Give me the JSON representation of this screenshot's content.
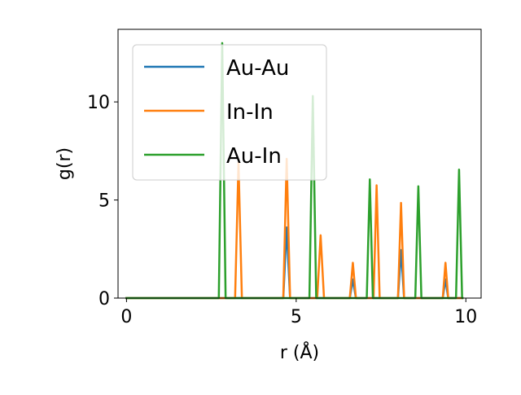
{
  "chart_data": {
    "type": "line",
    "title": "",
    "xlabel": "r (Å)",
    "ylabel": "g(r)",
    "xlim": [
      -0.25,
      10.45
    ],
    "ylim": [
      0,
      13.7
    ],
    "xticks": [
      0,
      5,
      10
    ],
    "yticks": [
      0,
      5,
      10
    ],
    "xtick_labels": [
      "0",
      "5",
      "10"
    ],
    "ytick_labels": [
      "0",
      "5",
      "10"
    ],
    "grid": false,
    "legend_position": "top-left",
    "series": [
      {
        "name": "Au-Au",
        "color": "#1f77b4",
        "x": [
          0,
          4.62,
          4.72,
          4.82,
          6.58,
          6.67,
          6.76,
          8.0,
          8.09,
          8.18,
          9.32,
          9.4,
          9.48,
          9.9
        ],
        "y": [
          0,
          0,
          3.6,
          0,
          0,
          0.95,
          0,
          0,
          2.45,
          0,
          0,
          0.95,
          0,
          0
        ]
      },
      {
        "name": "In-In",
        "color": "#ff7f0e",
        "x": [
          0,
          3.2,
          3.3,
          3.4,
          4.62,
          4.72,
          4.82,
          5.62,
          5.72,
          5.82,
          6.58,
          6.67,
          6.76,
          7.28,
          7.37,
          7.46,
          8.0,
          8.09,
          8.18,
          9.32,
          9.4,
          9.48,
          9.9
        ],
        "y": [
          0,
          0,
          6.9,
          0,
          0,
          7.1,
          0,
          0,
          3.2,
          0,
          0,
          1.8,
          0,
          0,
          5.75,
          0,
          0,
          4.85,
          0,
          0,
          1.8,
          0,
          0
        ]
      },
      {
        "name": "Au-In",
        "color": "#2ca02c",
        "x": [
          0,
          2.72,
          2.82,
          2.92,
          5.39,
          5.49,
          5.59,
          7.08,
          7.17,
          7.26,
          8.51,
          8.6,
          8.69,
          9.71,
          9.8,
          9.89,
          9.9
        ],
        "y": [
          0,
          0,
          13.0,
          0,
          0,
          10.3,
          0,
          0,
          6.05,
          0,
          0,
          5.7,
          0,
          0,
          6.55,
          0,
          0
        ]
      }
    ]
  }
}
